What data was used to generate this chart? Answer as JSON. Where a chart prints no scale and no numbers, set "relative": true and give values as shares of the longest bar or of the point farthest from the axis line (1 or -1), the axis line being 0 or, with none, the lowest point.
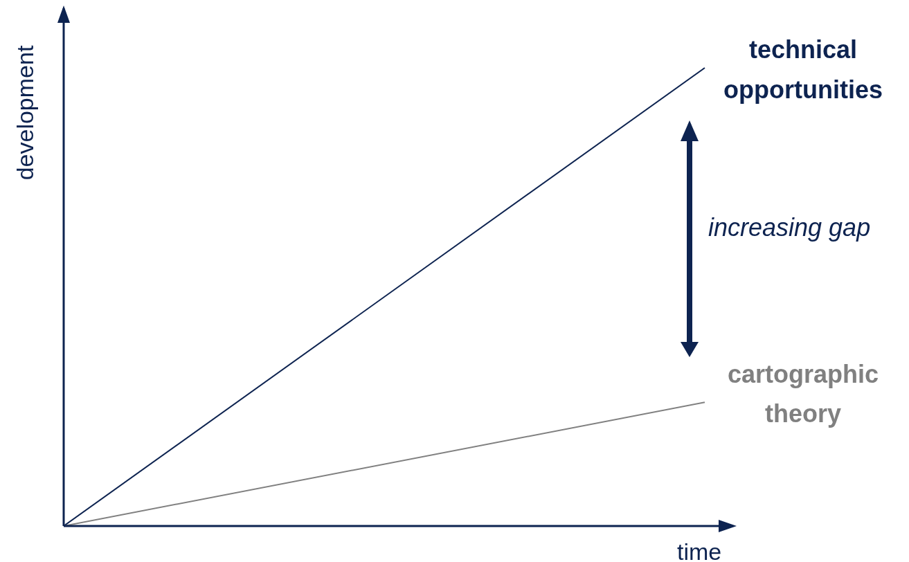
{
  "chart_data": {
    "type": "line",
    "relative": true,
    "xlabel": "time",
    "ylabel": "development",
    "categories": [
      null,
      null
    ],
    "series": [
      {
        "name": "technical opportunities",
        "color": "#0d2350",
        "values": [
          0,
          1
        ]
      },
      {
        "name": "cartographic theory",
        "color": "#808080",
        "values": [
          0,
          0.27
        ]
      }
    ],
    "annotations": [
      "increasing gap"
    ],
    "grid": false,
    "legend": false,
    "marker": "none",
    "line_style": "solid"
  }
}
